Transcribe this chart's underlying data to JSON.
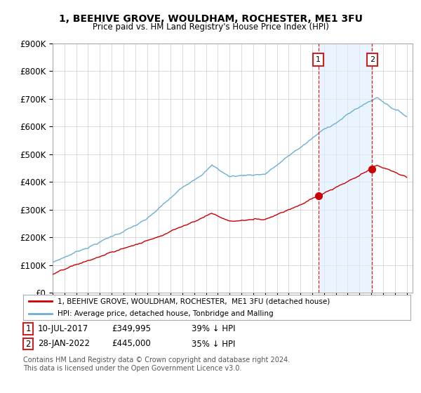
{
  "title": "1, BEEHIVE GROVE, WOULDHAM, ROCHESTER, ME1 3FU",
  "subtitle": "Price paid vs. HM Land Registry's House Price Index (HPI)",
  "ylabel_ticks": [
    0,
    100000,
    200000,
    300000,
    400000,
    500000,
    600000,
    700000,
    800000,
    900000
  ],
  "ylabel_labels": [
    "£0",
    "£100K",
    "£200K",
    "£300K",
    "£400K",
    "£500K",
    "£600K",
    "£700K",
    "£800K",
    "£900K"
  ],
  "hpi_color": "#6baed6",
  "price_color": "#cc0000",
  "sale1_year": 2017.52,
  "sale1_price": 349995,
  "sale1_label": "1",
  "sale1_date": "10-JUL-2017",
  "sale1_price_str": "£349,995",
  "sale1_pct": "39% ↓ HPI",
  "sale2_year": 2022.07,
  "sale2_price": 445000,
  "sale2_label": "2",
  "sale2_date": "28-JAN-2022",
  "sale2_price_str": "£445,000",
  "sale2_pct": "35% ↓ HPI",
  "legend_line1": "1, BEEHIVE GROVE, WOULDHAM, ROCHESTER,  ME1 3FU (detached house)",
  "legend_line2": "HPI: Average price, detached house, Tonbridge and Malling",
  "footnote": "Contains HM Land Registry data © Crown copyright and database right 2024.\nThis data is licensed under the Open Government Licence v3.0.",
  "bg_color": "#ffffff",
  "grid_color": "#cccccc",
  "shade_color": "#ddeeff",
  "vline_color": "#dd2222",
  "ann_box_color": "#cc2222"
}
